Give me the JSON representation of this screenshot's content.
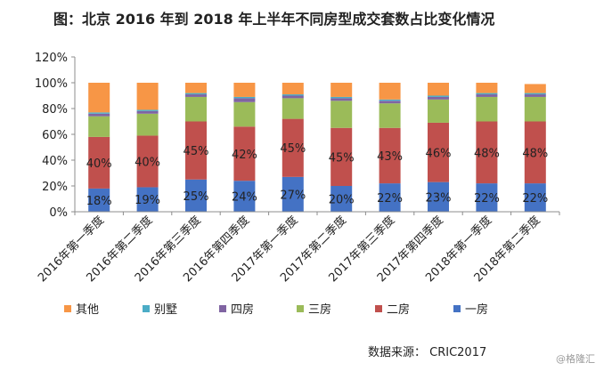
{
  "title": "图：北京 2016 年到 2018 年上半年不同房型成交套数占比变化情况",
  "source": "数据来源：  CRIC2017",
  "watermark": "@格隆汇",
  "chart_data": {
    "type": "bar",
    "stacked": true,
    "categories": [
      "2016年第一季度",
      "2016年第二季度",
      "2016年第三季度",
      "2016年第四季度",
      "2017年第一季度",
      "2017年第二季度",
      "2017年第三季度",
      "2017年第四季度",
      "2018年第一季度",
      "2018年第二季度"
    ],
    "series": [
      {
        "name": "一房",
        "color": "#4472c4",
        "values": [
          18,
          19,
          25,
          24,
          27,
          20,
          22,
          23,
          22,
          22
        ]
      },
      {
        "name": "二房",
        "color": "#c0504d",
        "values": [
          40,
          40,
          45,
          42,
          45,
          45,
          43,
          46,
          48,
          48
        ]
      },
      {
        "name": "三房",
        "color": "#9bbb59",
        "values": [
          16,
          17,
          19,
          19,
          16,
          21,
          19,
          18,
          19,
          19
        ]
      },
      {
        "name": "四房",
        "color": "#8064a2",
        "values": [
          2,
          2,
          2,
          3,
          2,
          2,
          2,
          2,
          2,
          2
        ]
      },
      {
        "name": "别墅",
        "color": "#4bacc6",
        "values": [
          1,
          1,
          1,
          1,
          1,
          1,
          1,
          1,
          1,
          1
        ]
      },
      {
        "name": "其他",
        "color": "#f79646",
        "values": [
          23,
          21,
          8,
          11,
          9,
          11,
          13,
          10,
          8,
          7
        ]
      }
    ],
    "data_labels_series": [
      "一房",
      "二房"
    ],
    "data_label_format": "{v}%",
    "legend_order": [
      "其他",
      "别墅",
      "四房",
      "三房",
      "二房",
      "一房"
    ],
    "ylim": [
      0,
      120
    ],
    "yticks": [
      0,
      20,
      40,
      60,
      80,
      100,
      120
    ],
    "ytick_format": "{v}%",
    "legend": "bottom"
  }
}
